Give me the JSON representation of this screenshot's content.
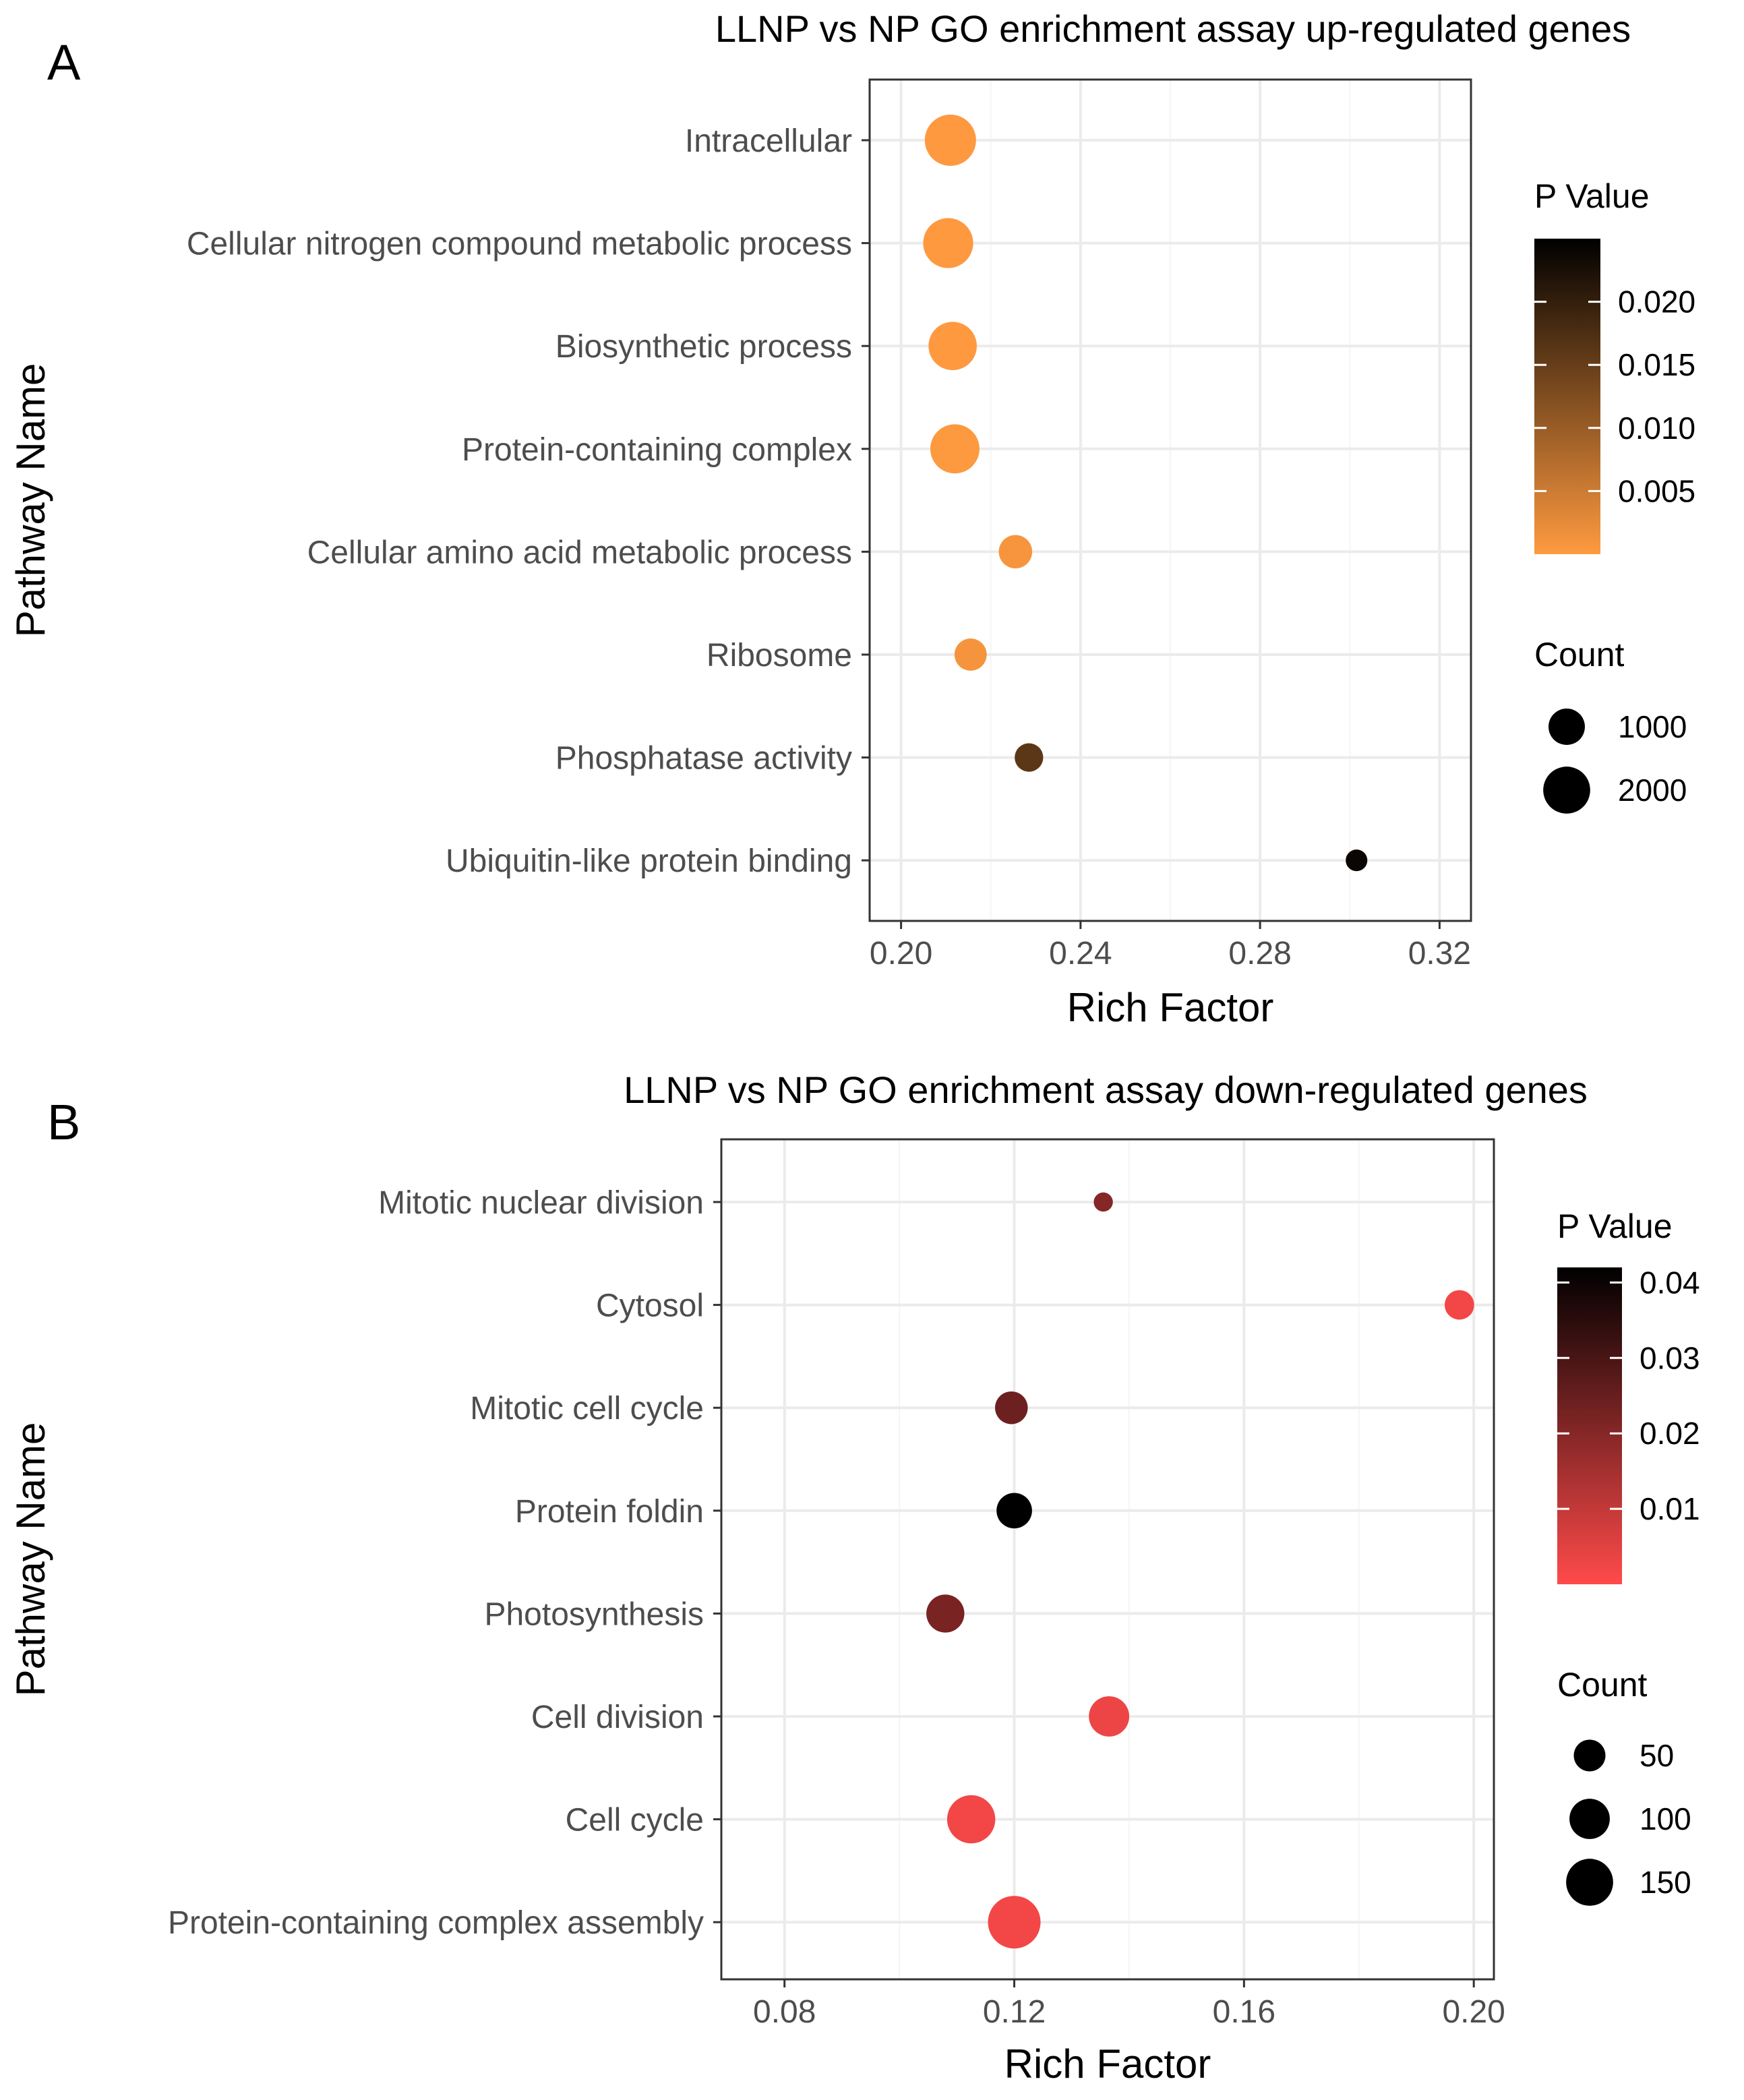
{
  "colors": {
    "panel_border": "#333333",
    "grid_major": "#ebebeb",
    "grid_minor": "#f5f5f5",
    "tick_text": "#4d4d4d",
    "title_text": "#000000"
  },
  "chart_data": [
    {
      "panel_label": "A",
      "type": "scatter",
      "subtype": "bubble",
      "title": "LLNP vs NP GO enrichment assay up-regulated genes",
      "xlabel": "Rich Factor",
      "ylabel": "Pathway Name",
      "xlim": [
        0.193,
        0.327
      ],
      "xticks": [
        0.2,
        0.24,
        0.28,
        0.32
      ],
      "xtick_labels": [
        "0.20",
        "0.24",
        "0.28",
        "0.32"
      ],
      "grid": true,
      "categories": [
        "Intracellular",
        "Cellular nitrogen compound metabolic process",
        "Biosynthetic process",
        "Protein-containing complex",
        "Cellular amino acid metabolic process",
        "Ribosome",
        "Phosphatase activity",
        "Ubiquitin-like protein binding"
      ],
      "points": [
        {
          "pathway": "Intracellular",
          "rich_factor": 0.211,
          "p_value": 0.0001,
          "count": 2500
        },
        {
          "pathway": "Cellular nitrogen compound metabolic process",
          "rich_factor": 0.2105,
          "p_value": 0.0001,
          "count": 2350
        },
        {
          "pathway": "Biosynthetic process",
          "rich_factor": 0.2115,
          "p_value": 0.0001,
          "count": 2150
        },
        {
          "pathway": "Protein-containing complex",
          "rich_factor": 0.212,
          "p_value": 0.0002,
          "count": 2250
        },
        {
          "pathway": "Cellular amino acid metabolic process",
          "rich_factor": 0.2255,
          "p_value": 0.0008,
          "count": 780
        },
        {
          "pathway": "Ribosome",
          "rich_factor": 0.2155,
          "p_value": 0.001,
          "count": 700
        },
        {
          "pathway": "Phosphatase activity",
          "rich_factor": 0.2285,
          "p_value": 0.016,
          "count": 480
        },
        {
          "pathway": "Ubiquitin-like protein binding",
          "rich_factor": 0.3015,
          "p_value": 0.024,
          "count": 180
        }
      ],
      "color_legend": {
        "title": "P Value",
        "min": 0,
        "max": 0.025,
        "low_color": "#ff9a40",
        "high_color": "#000000",
        "ticks": [
          0.005,
          0.01,
          0.015,
          0.02
        ],
        "tick_labels": [
          "0.005",
          "0.010",
          "0.015",
          "0.020"
        ]
      },
      "size_legend": {
        "title": "Count",
        "max_count": 2500,
        "values": [
          1000,
          2000
        ],
        "labels": [
          "1000",
          "2000"
        ]
      }
    },
    {
      "panel_label": "B",
      "type": "scatter",
      "subtype": "bubble",
      "title": "LLNP vs NP GO enrichment assay down-regulated genes",
      "xlabel": "Rich Factor",
      "ylabel": "Pathway Name",
      "xlim": [
        0.069,
        0.2035
      ],
      "xticks": [
        0.08,
        0.12,
        0.16,
        0.2
      ],
      "xtick_labels": [
        "0.08",
        "0.12",
        "0.16",
        "0.20"
      ],
      "grid": true,
      "categories": [
        "Mitotic nuclear division",
        "Cytosol",
        "Mitotic cell cycle",
        "Protein foldin",
        "Photosynthesis",
        "Cell division",
        "Cell cycle",
        "Protein-containing complex assembly"
      ],
      "points": [
        {
          "pathway": "Mitotic nuclear division",
          "rich_factor": 0.1355,
          "p_value": 0.02,
          "count": 8
        },
        {
          "pathway": "Cytosol",
          "rich_factor": 0.1975,
          "p_value": 0.002,
          "count": 40
        },
        {
          "pathway": "Mitotic cell cycle",
          "rich_factor": 0.1195,
          "p_value": 0.024,
          "count": 55
        },
        {
          "pathway": "Protein foldin",
          "rich_factor": 0.12,
          "p_value": 0.042,
          "count": 70
        },
        {
          "pathway": "Photosynthesis",
          "rich_factor": 0.108,
          "p_value": 0.022,
          "count": 85
        },
        {
          "pathway": "Cell division",
          "rich_factor": 0.1365,
          "p_value": 0.003,
          "count": 100
        },
        {
          "pathway": "Cell cycle",
          "rich_factor": 0.1125,
          "p_value": 0.002,
          "count": 160
        },
        {
          "pathway": "Protein-containing complex assembly",
          "rich_factor": 0.12,
          "p_value": 0.002,
          "count": 200
        }
      ],
      "color_legend": {
        "title": "P Value",
        "min": 0,
        "max": 0.042,
        "low_color": "#ff4a4a",
        "high_color": "#000000",
        "ticks": [
          0.01,
          0.02,
          0.03,
          0.04
        ],
        "tick_labels": [
          "0.01",
          "0.02",
          "0.03",
          "0.04"
        ]
      },
      "size_legend": {
        "title": "Count",
        "max_count": 200,
        "values": [
          50,
          100,
          150
        ],
        "labels": [
          "50",
          "100",
          "150"
        ]
      }
    }
  ]
}
